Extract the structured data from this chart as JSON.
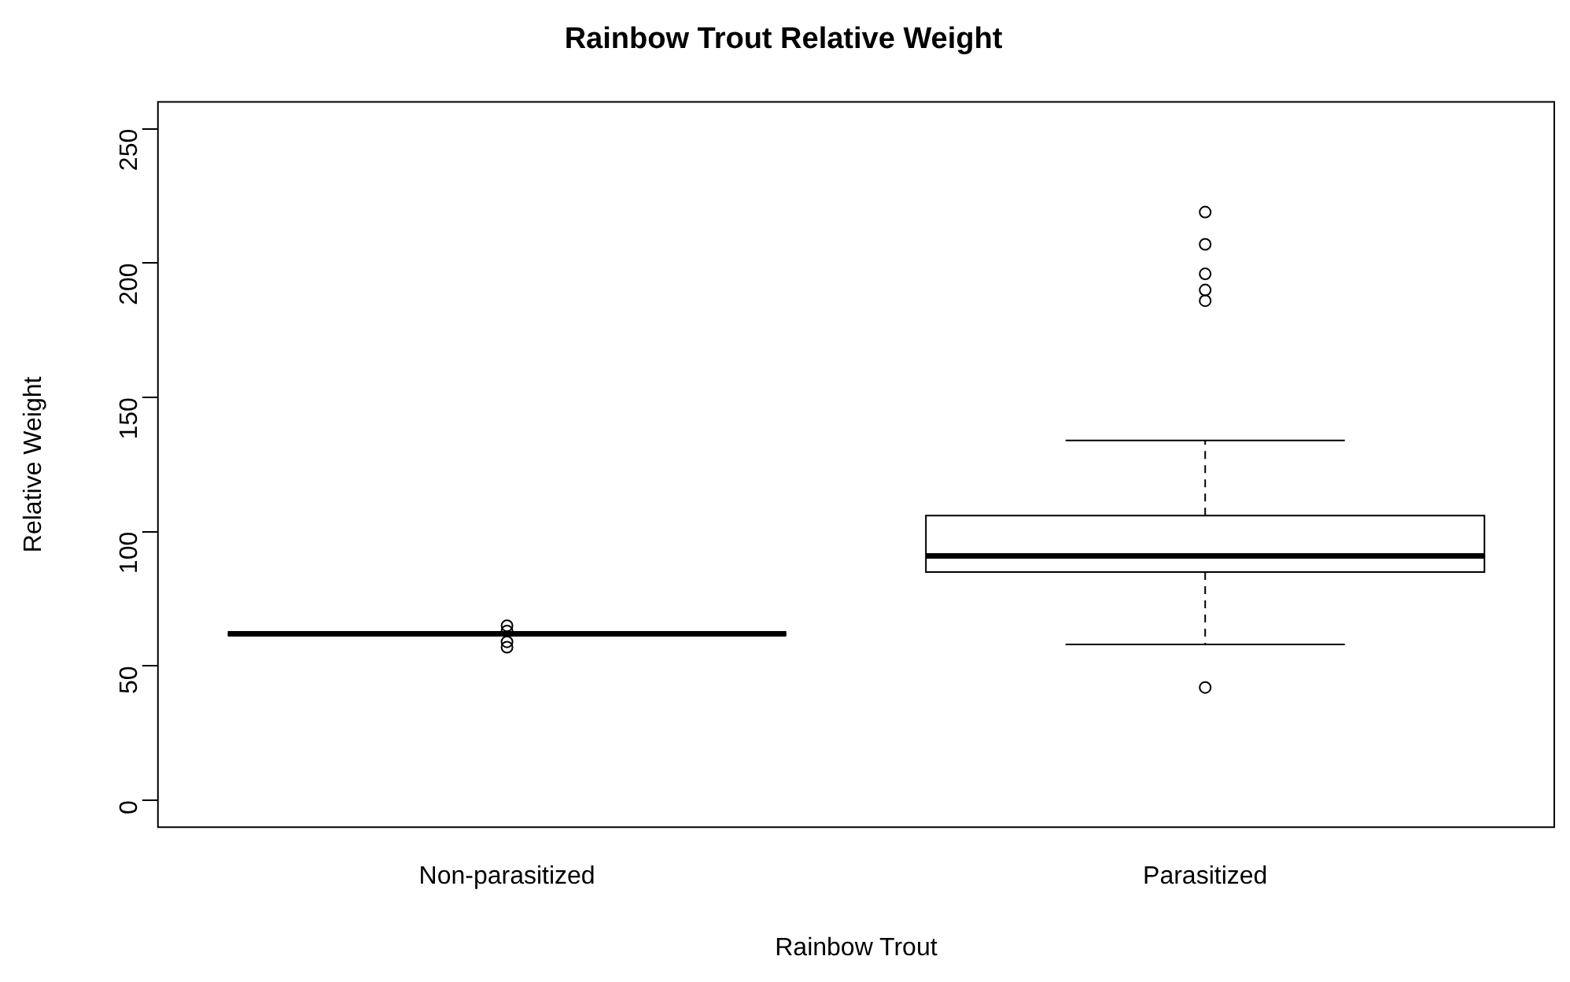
{
  "chart_data": {
    "type": "box",
    "title": "Rainbow Trout Relative Weight",
    "xlabel": "Rainbow Trout",
    "ylabel": "Relative Weight",
    "categories": [
      "Non-parasitized",
      "Parasitized"
    ],
    "boxes": [
      {
        "low": 62,
        "q1": 62,
        "median": 62,
        "q3": 62,
        "high": 62,
        "outliers": [
          65,
          63,
          59,
          57
        ]
      },
      {
        "low": 58,
        "q1": 85,
        "median": 91,
        "q3": 106,
        "high": 134,
        "outliers": [
          219,
          207,
          196,
          190,
          186,
          42
        ]
      }
    ],
    "color": "#000000",
    "ylim": [
      -10,
      260
    ],
    "yticks": [
      0,
      50,
      100,
      150,
      200,
      250
    ],
    "grid": false,
    "legend": false,
    "marker": "circle"
  }
}
